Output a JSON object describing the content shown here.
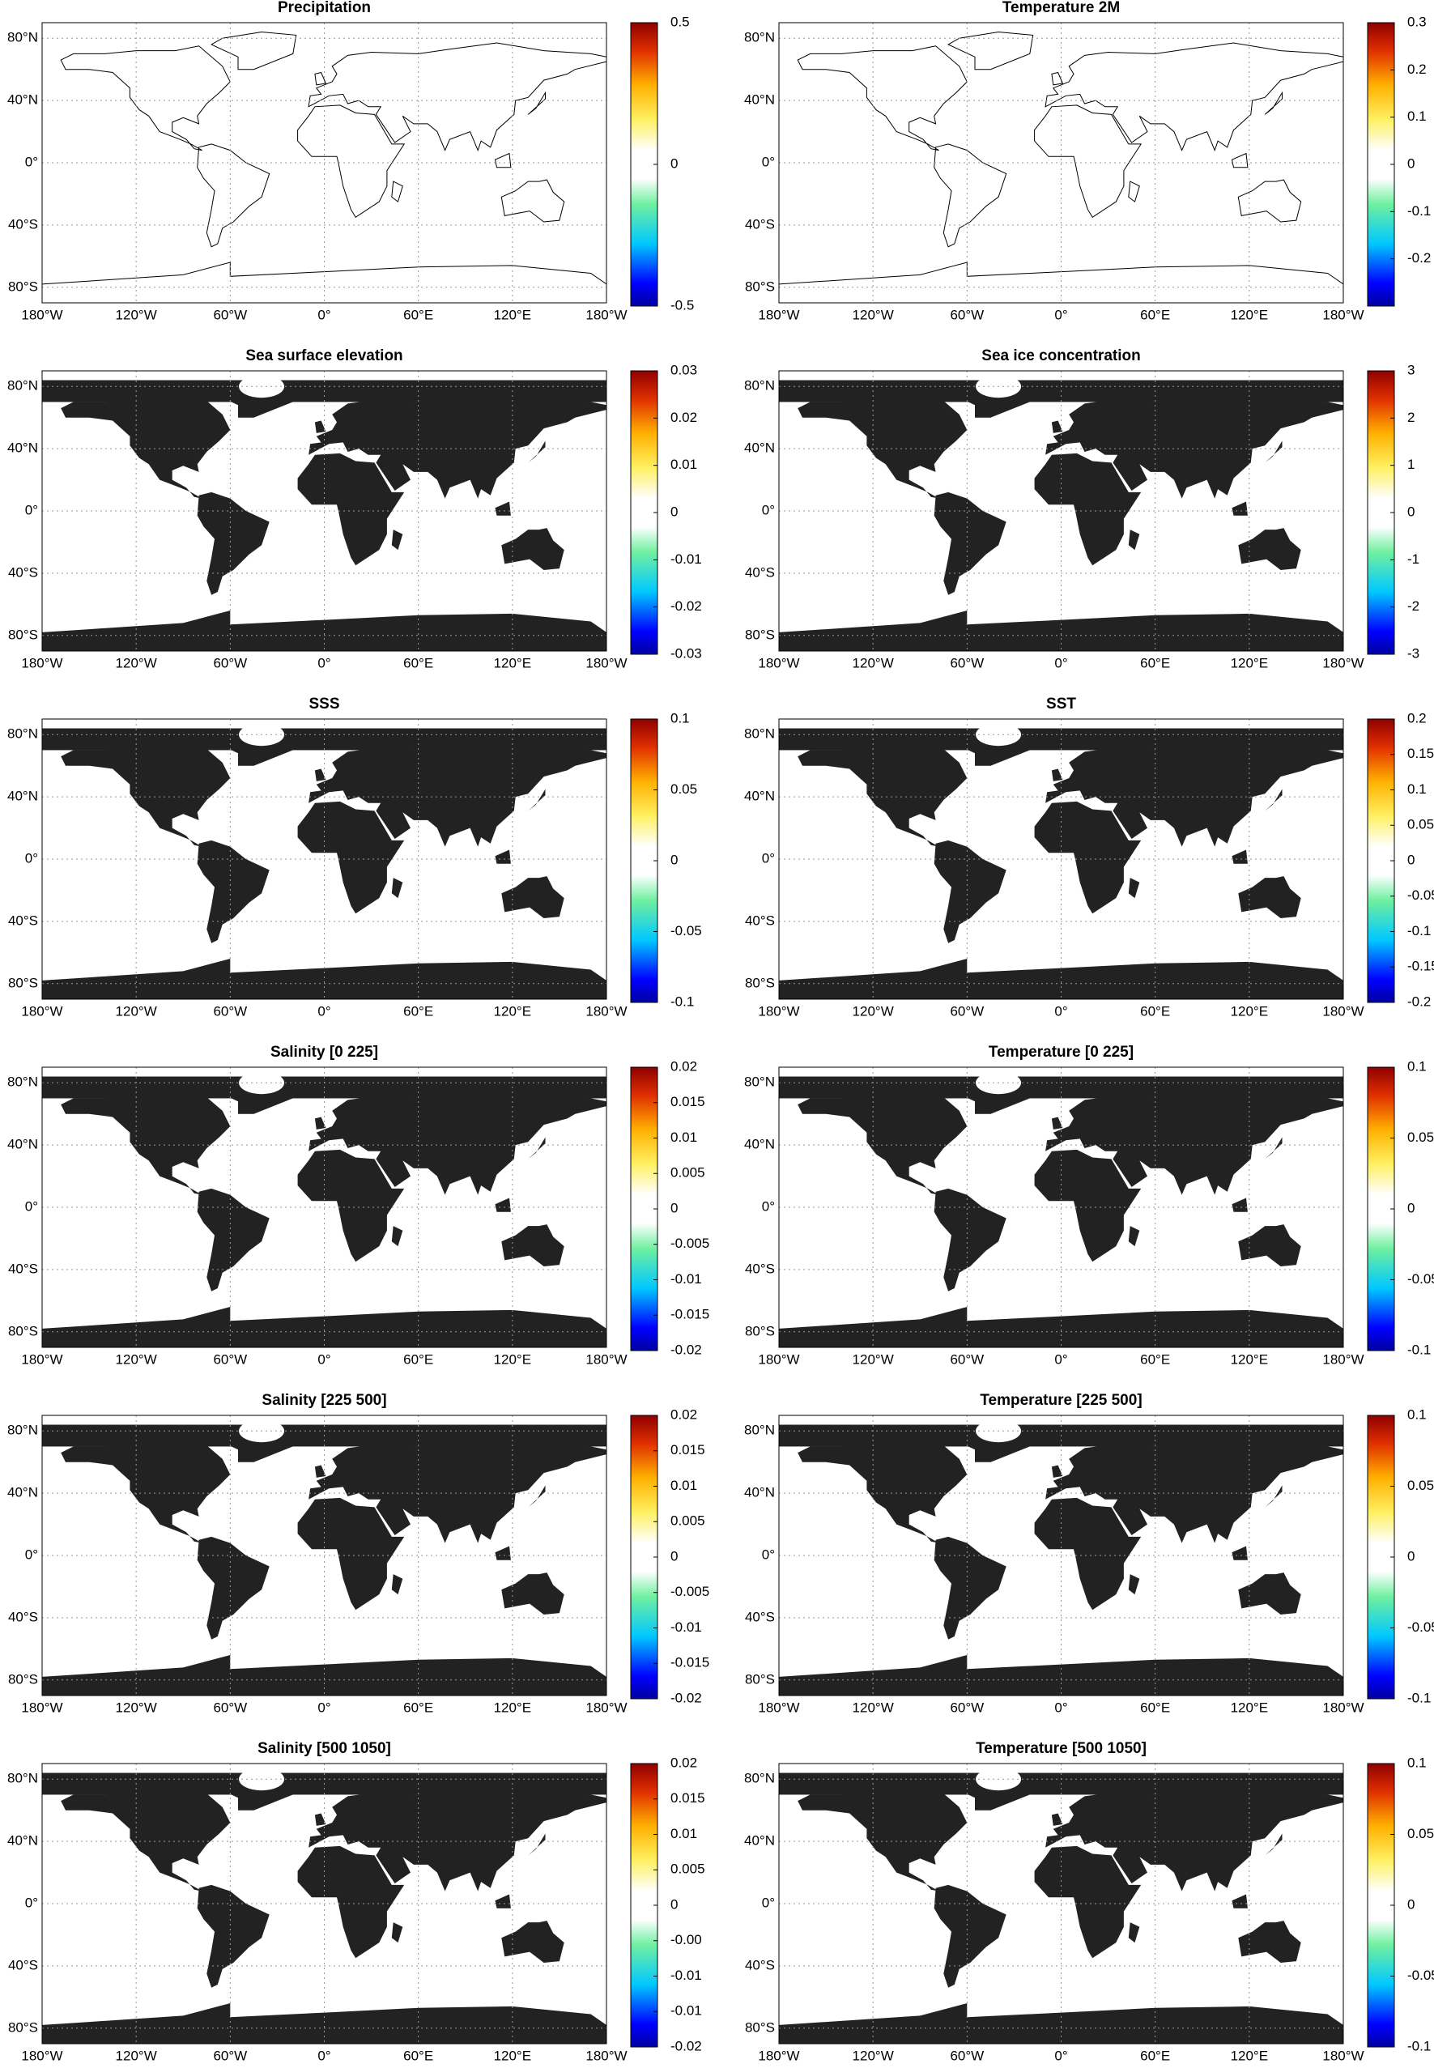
{
  "chart_data": [
    {
      "type": "map",
      "title": "Precipitation",
      "land_style": "outline",
      "xlim": [
        -180,
        180
      ],
      "ylim": [
        -90,
        90
      ],
      "grid": true,
      "xticks": [
        {
          "value": -180,
          "label": "180°W"
        },
        {
          "value": -120,
          "label": "120°W"
        },
        {
          "value": -60,
          "label": "60°W"
        },
        {
          "value": 0,
          "label": "0°"
        },
        {
          "value": 60,
          "label": "60°E"
        },
        {
          "value": 120,
          "label": "120°E"
        },
        {
          "value": 180,
          "label": "180°W"
        }
      ],
      "yticks": [
        {
          "value": -80,
          "label": "80°S"
        },
        {
          "value": -40,
          "label": "40°S"
        },
        {
          "value": 0,
          "label": "0°"
        },
        {
          "value": 40,
          "label": "40°N"
        },
        {
          "value": 80,
          "label": "80°N"
        }
      ],
      "colorbar_lim": [
        -0.5,
        0.5
      ],
      "colorbar_ticks": [
        -0.5,
        0,
        0.5
      ]
    },
    {
      "type": "map",
      "title": "Temperature 2M",
      "land_style": "outline",
      "xlim": [
        -180,
        180
      ],
      "ylim": [
        -90,
        90
      ],
      "grid": true,
      "xticks": [
        {
          "value": -180,
          "label": "180°W"
        },
        {
          "value": -120,
          "label": "120°W"
        },
        {
          "value": -60,
          "label": "60°W"
        },
        {
          "value": 0,
          "label": "0°"
        },
        {
          "value": 60,
          "label": "60°E"
        },
        {
          "value": 120,
          "label": "120°E"
        },
        {
          "value": 180,
          "label": "180°W"
        }
      ],
      "yticks": [
        {
          "value": -80,
          "label": "80°S"
        },
        {
          "value": -40,
          "label": "40°S"
        },
        {
          "value": 0,
          "label": "0°"
        },
        {
          "value": 40,
          "label": "40°N"
        },
        {
          "value": 80,
          "label": "80°N"
        }
      ],
      "colorbar_lim": [
        -0.3,
        0.3
      ],
      "colorbar_ticks": [
        -0.2,
        -0.1,
        0,
        0.1,
        0.2,
        0.3
      ]
    },
    {
      "type": "map",
      "title": "Sea surface elevation",
      "land_style": "filled",
      "xlim": [
        -180,
        180
      ],
      "ylim": [
        -90,
        90
      ],
      "grid": true,
      "xticks": [
        {
          "value": -180,
          "label": "180°W"
        },
        {
          "value": -120,
          "label": "120°W"
        },
        {
          "value": -60,
          "label": "60°W"
        },
        {
          "value": 0,
          "label": "0°"
        },
        {
          "value": 60,
          "label": "60°E"
        },
        {
          "value": 120,
          "label": "120°E"
        },
        {
          "value": 180,
          "label": "180°W"
        }
      ],
      "yticks": [
        {
          "value": -80,
          "label": "80°S"
        },
        {
          "value": -40,
          "label": "40°S"
        },
        {
          "value": 0,
          "label": "0°"
        },
        {
          "value": 40,
          "label": "40°N"
        },
        {
          "value": 80,
          "label": "80°N"
        }
      ],
      "colorbar_lim": [
        -0.03,
        0.03
      ],
      "colorbar_ticks": [
        -0.03,
        -0.02,
        -0.01,
        0,
        0.01,
        0.02,
        0.03
      ]
    },
    {
      "type": "map",
      "title": "Sea ice concentration",
      "land_style": "filled",
      "xlim": [
        -180,
        180
      ],
      "ylim": [
        -90,
        90
      ],
      "grid": true,
      "xticks": [
        {
          "value": -180,
          "label": "180°W"
        },
        {
          "value": -120,
          "label": "120°W"
        },
        {
          "value": -60,
          "label": "60°W"
        },
        {
          "value": 0,
          "label": "0°"
        },
        {
          "value": 60,
          "label": "60°E"
        },
        {
          "value": 120,
          "label": "120°E"
        },
        {
          "value": 180,
          "label": "180°W"
        }
      ],
      "yticks": [
        {
          "value": -80,
          "label": "80°S"
        },
        {
          "value": -40,
          "label": "40°S"
        },
        {
          "value": 0,
          "label": "0°"
        },
        {
          "value": 40,
          "label": "40°N"
        },
        {
          "value": 80,
          "label": "80°N"
        }
      ],
      "colorbar_lim": [
        -3,
        3
      ],
      "colorbar_ticks": [
        -3,
        -2,
        -1,
        0,
        1,
        2,
        3
      ]
    },
    {
      "type": "map",
      "title": "SSS",
      "land_style": "filled",
      "xlim": [
        -180,
        180
      ],
      "ylim": [
        -90,
        90
      ],
      "grid": true,
      "xticks": [
        {
          "value": -180,
          "label": "180°W"
        },
        {
          "value": -120,
          "label": "120°W"
        },
        {
          "value": -60,
          "label": "60°W"
        },
        {
          "value": 0,
          "label": "0°"
        },
        {
          "value": 60,
          "label": "60°E"
        },
        {
          "value": 120,
          "label": "120°E"
        },
        {
          "value": 180,
          "label": "180°W"
        }
      ],
      "yticks": [
        {
          "value": -80,
          "label": "80°S"
        },
        {
          "value": -40,
          "label": "40°S"
        },
        {
          "value": 0,
          "label": "0°"
        },
        {
          "value": 40,
          "label": "40°N"
        },
        {
          "value": 80,
          "label": "80°N"
        }
      ],
      "colorbar_lim": [
        -0.1,
        0.1
      ],
      "colorbar_ticks": [
        -0.1,
        -0.05,
        0,
        0.05,
        0.1
      ]
    },
    {
      "type": "map",
      "title": "SST",
      "land_style": "filled",
      "xlim": [
        -180,
        180
      ],
      "ylim": [
        -90,
        90
      ],
      "grid": true,
      "xticks": [
        {
          "value": -180,
          "label": "180°W"
        },
        {
          "value": -120,
          "label": "120°W"
        },
        {
          "value": -60,
          "label": "60°W"
        },
        {
          "value": 0,
          "label": "0°"
        },
        {
          "value": 60,
          "label": "60°E"
        },
        {
          "value": 120,
          "label": "120°E"
        },
        {
          "value": 180,
          "label": "180°W"
        }
      ],
      "yticks": [
        {
          "value": -80,
          "label": "80°S"
        },
        {
          "value": -40,
          "label": "40°S"
        },
        {
          "value": 0,
          "label": "0°"
        },
        {
          "value": 40,
          "label": "40°N"
        },
        {
          "value": 80,
          "label": "80°N"
        }
      ],
      "colorbar_lim": [
        -0.2,
        0.2
      ],
      "colorbar_ticks": [
        -0.2,
        -0.15,
        -0.1,
        -0.05,
        0,
        0.05,
        0.1,
        0.15,
        0.2
      ]
    },
    {
      "type": "map",
      "title": "Salinity [0  225]",
      "land_style": "filled",
      "xlim": [
        -180,
        180
      ],
      "ylim": [
        -90,
        90
      ],
      "grid": true,
      "xticks": [
        {
          "value": -180,
          "label": "180°W"
        },
        {
          "value": -120,
          "label": "120°W"
        },
        {
          "value": -60,
          "label": "60°W"
        },
        {
          "value": 0,
          "label": "0°"
        },
        {
          "value": 60,
          "label": "60°E"
        },
        {
          "value": 120,
          "label": "120°E"
        },
        {
          "value": 180,
          "label": "180°W"
        }
      ],
      "yticks": [
        {
          "value": -80,
          "label": "80°S"
        },
        {
          "value": -40,
          "label": "40°S"
        },
        {
          "value": 0,
          "label": "0°"
        },
        {
          "value": 40,
          "label": "40°N"
        },
        {
          "value": 80,
          "label": "80°N"
        }
      ],
      "colorbar_lim": [
        -0.02,
        0.02
      ],
      "colorbar_ticks": [
        -0.02,
        -0.015,
        -0.01,
        -0.005,
        0,
        0.005,
        0.01,
        0.015,
        0.02
      ]
    },
    {
      "type": "map",
      "title": "Temperature [0  225]",
      "land_style": "filled",
      "xlim": [
        -180,
        180
      ],
      "ylim": [
        -90,
        90
      ],
      "grid": true,
      "xticks": [
        {
          "value": -180,
          "label": "180°W"
        },
        {
          "value": -120,
          "label": "120°W"
        },
        {
          "value": -60,
          "label": "60°W"
        },
        {
          "value": 0,
          "label": "0°"
        },
        {
          "value": 60,
          "label": "60°E"
        },
        {
          "value": 120,
          "label": "120°E"
        },
        {
          "value": 180,
          "label": "180°W"
        }
      ],
      "yticks": [
        {
          "value": -80,
          "label": "80°S"
        },
        {
          "value": -40,
          "label": "40°S"
        },
        {
          "value": 0,
          "label": "0°"
        },
        {
          "value": 40,
          "label": "40°N"
        },
        {
          "value": 80,
          "label": "80°N"
        }
      ],
      "colorbar_lim": [
        -0.1,
        0.1
      ],
      "colorbar_ticks": [
        -0.1,
        -0.05,
        0,
        0.05,
        0.1
      ]
    },
    {
      "type": "map",
      "title": "Salinity [225  500]",
      "land_style": "filled",
      "xlim": [
        -180,
        180
      ],
      "ylim": [
        -90,
        90
      ],
      "grid": true,
      "xticks": [
        {
          "value": -180,
          "label": "180°W"
        },
        {
          "value": -120,
          "label": "120°W"
        },
        {
          "value": -60,
          "label": "60°W"
        },
        {
          "value": 0,
          "label": "0°"
        },
        {
          "value": 60,
          "label": "60°E"
        },
        {
          "value": 120,
          "label": "120°E"
        },
        {
          "value": 180,
          "label": "180°W"
        }
      ],
      "yticks": [
        {
          "value": -80,
          "label": "80°S"
        },
        {
          "value": -40,
          "label": "40°S"
        },
        {
          "value": 0,
          "label": "0°"
        },
        {
          "value": 40,
          "label": "40°N"
        },
        {
          "value": 80,
          "label": "80°N"
        }
      ],
      "colorbar_lim": [
        -0.02,
        0.02
      ],
      "colorbar_ticks": [
        -0.02,
        -0.015,
        -0.01,
        -0.005,
        0,
        0.005,
        0.01,
        0.015,
        0.02
      ]
    },
    {
      "type": "map",
      "title": "Temperature [225  500]",
      "land_style": "filled",
      "xlim": [
        -180,
        180
      ],
      "ylim": [
        -90,
        90
      ],
      "grid": true,
      "xticks": [
        {
          "value": -180,
          "label": "180°W"
        },
        {
          "value": -120,
          "label": "120°W"
        },
        {
          "value": -60,
          "label": "60°W"
        },
        {
          "value": 0,
          "label": "0°"
        },
        {
          "value": 60,
          "label": "60°E"
        },
        {
          "value": 120,
          "label": "120°E"
        },
        {
          "value": 180,
          "label": "180°W"
        }
      ],
      "yticks": [
        {
          "value": -80,
          "label": "80°S"
        },
        {
          "value": -40,
          "label": "40°S"
        },
        {
          "value": 0,
          "label": "0°"
        },
        {
          "value": 40,
          "label": "40°N"
        },
        {
          "value": 80,
          "label": "80°N"
        }
      ],
      "colorbar_lim": [
        -0.1,
        0.1
      ],
      "colorbar_ticks": [
        -0.1,
        -0.05,
        0,
        0.05,
        0.1
      ]
    },
    {
      "type": "map",
      "title": "Salinity [500  1050]",
      "land_style": "filled",
      "xlim": [
        -180,
        180
      ],
      "ylim": [
        -90,
        90
      ],
      "grid": true,
      "xticks": [
        {
          "value": -180,
          "label": "180°W"
        },
        {
          "value": -120,
          "label": "120°W"
        },
        {
          "value": -60,
          "label": "60°W"
        },
        {
          "value": 0,
          "label": "0°"
        },
        {
          "value": 60,
          "label": "60°E"
        },
        {
          "value": 120,
          "label": "120°E"
        },
        {
          "value": 180,
          "label": "180°W"
        }
      ],
      "yticks": [
        {
          "value": -80,
          "label": "80°S"
        },
        {
          "value": -40,
          "label": "40°S"
        },
        {
          "value": 0,
          "label": "0°"
        },
        {
          "value": 40,
          "label": "40°N"
        },
        {
          "value": 80,
          "label": "80°N"
        }
      ],
      "colorbar_lim": [
        -0.02,
        0.02
      ],
      "colorbar_ticks": [
        -0.02,
        {
          "value": -0.015,
          "label": "-0.01"
        },
        -0.01,
        {
          "value": -0.005,
          "label": "-0.00"
        },
        0,
        0.005,
        0.01,
        0.015,
        0.02
      ]
    },
    {
      "type": "map",
      "title": "Temperature [500  1050]",
      "land_style": "filled",
      "xlim": [
        -180,
        180
      ],
      "ylim": [
        -90,
        90
      ],
      "grid": true,
      "xticks": [
        {
          "value": -180,
          "label": "180°W"
        },
        {
          "value": -120,
          "label": "120°W"
        },
        {
          "value": -60,
          "label": "60°W"
        },
        {
          "value": 0,
          "label": "0°"
        },
        {
          "value": 60,
          "label": "60°E"
        },
        {
          "value": 120,
          "label": "120°E"
        },
        {
          "value": 180,
          "label": "180°W"
        }
      ],
      "yticks": [
        {
          "value": -80,
          "label": "80°S"
        },
        {
          "value": -40,
          "label": "40°S"
        },
        {
          "value": 0,
          "label": "0°"
        },
        {
          "value": 40,
          "label": "40°N"
        },
        {
          "value": 80,
          "label": "80°N"
        }
      ],
      "colorbar_lim": [
        -0.1,
        0.1
      ],
      "colorbar_ticks": [
        -0.1,
        -0.05,
        0,
        0.05,
        0.1
      ]
    }
  ]
}
